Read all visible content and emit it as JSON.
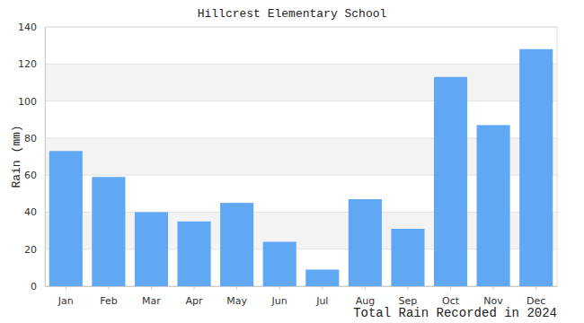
{
  "chart_data": {
    "type": "bar",
    "title": "Hillcrest Elementary School",
    "x_label": "Total Rain Recorded in 2024",
    "y_label": "Rain (mm)",
    "categories": [
      "Jan",
      "Feb",
      "Mar",
      "Apr",
      "May",
      "Jun",
      "Jul",
      "Aug",
      "Sep",
      "Oct",
      "Nov",
      "Dec"
    ],
    "values": [
      73,
      59,
      40,
      35,
      45,
      24,
      9,
      47,
      31,
      113,
      87,
      128
    ],
    "color": "#60a8f4",
    "ylim": [
      0,
      140
    ],
    "yticks": [
      0,
      20,
      40,
      60,
      80,
      100,
      120,
      140
    ],
    "grid": true
  }
}
